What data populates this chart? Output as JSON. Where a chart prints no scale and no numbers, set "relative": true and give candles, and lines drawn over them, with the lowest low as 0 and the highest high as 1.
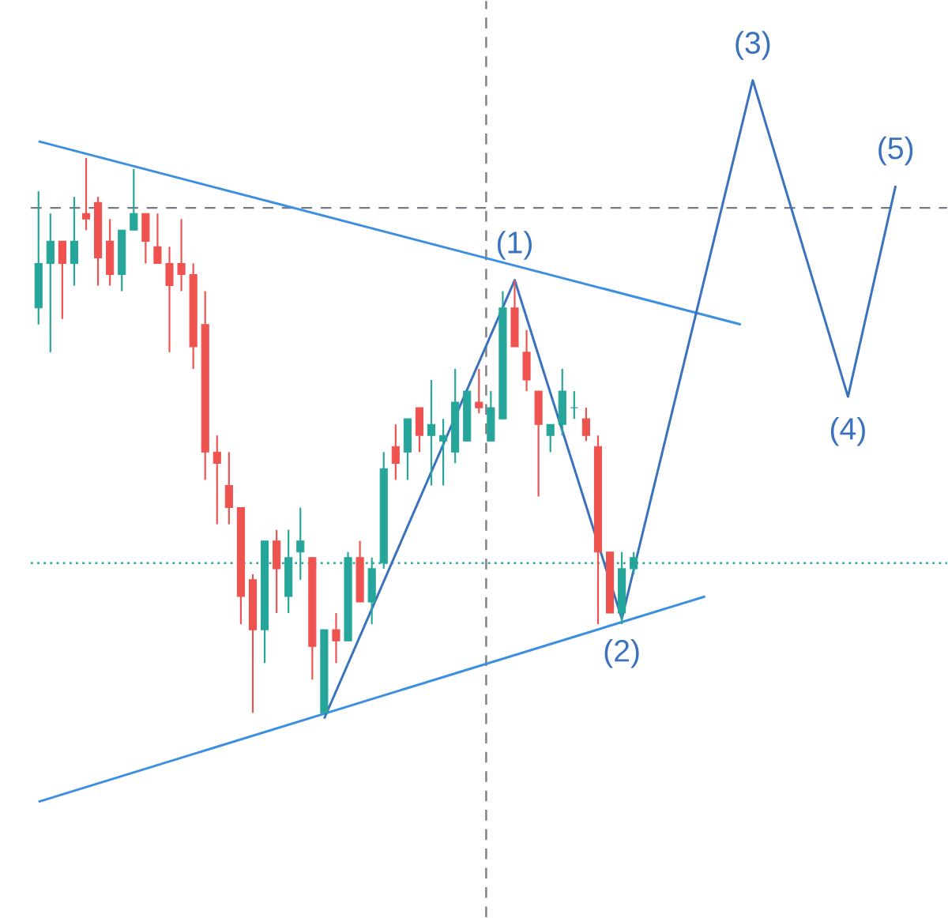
{
  "chart_data": {
    "type": "candlestick",
    "relative": true,
    "categories": [
      null,
      null,
      null,
      null,
      null,
      null,
      null,
      null,
      null,
      null,
      null,
      null,
      null,
      null,
      null,
      null,
      null,
      null,
      null,
      null,
      null,
      null,
      null,
      null,
      null,
      null,
      null,
      null,
      null,
      null,
      null,
      null,
      null,
      null,
      null,
      null,
      null,
      null,
      null,
      null,
      null,
      null,
      null,
      null,
      null,
      null,
      null,
      null,
      null,
      null,
      null,
      null,
      null,
      null,
      null,
      null,
      null,
      null,
      null,
      null,
      null,
      null,
      null,
      null,
      null,
      null,
      null,
      null,
      null,
      null,
      null,
      null,
      null
    ],
    "ohlc": [
      [
        0.73,
        0.94,
        0.7,
        0.81
      ],
      [
        0.81,
        0.9,
        0.65,
        0.85
      ],
      [
        0.85,
        0.85,
        0.71,
        0.81
      ],
      [
        0.81,
        0.93,
        0.77,
        0.85
      ],
      [
        0.9,
        1.0,
        0.87,
        0.89
      ],
      [
        0.92,
        0.93,
        0.77,
        0.82
      ],
      [
        0.85,
        0.89,
        0.77,
        0.79
      ],
      [
        0.79,
        0.87,
        0.76,
        0.87
      ],
      [
        0.87,
        0.98,
        0.87,
        0.9
      ],
      [
        0.9,
        0.9,
        0.81,
        0.85
      ],
      [
        0.84,
        0.9,
        0.81,
        0.81
      ],
      [
        0.81,
        0.84,
        0.65,
        0.77
      ],
      [
        0.81,
        0.89,
        0.76,
        0.79
      ],
      [
        0.79,
        0.81,
        0.62,
        0.66
      ],
      [
        0.7,
        0.76,
        0.42,
        0.47
      ],
      [
        0.47,
        0.5,
        0.34,
        0.45
      ],
      [
        0.41,
        0.47,
        0.34,
        0.37
      ],
      [
        0.37,
        0.37,
        0.16,
        0.21
      ],
      [
        0.24,
        0.25,
        0.0,
        0.15
      ],
      [
        0.15,
        0.31,
        0.09,
        0.31
      ],
      [
        0.31,
        0.33,
        0.18,
        0.26
      ],
      [
        0.21,
        0.33,
        0.18,
        0.28
      ],
      [
        0.29,
        0.37,
        0.24,
        0.31
      ],
      [
        0.28,
        0.28,
        0.06,
        0.12
      ],
      [
        0.0,
        0.15,
        0.0,
        0.15
      ],
      [
        0.15,
        0.18,
        0.09,
        0.13
      ],
      [
        0.13,
        0.29,
        0.13,
        0.28
      ],
      [
        0.28,
        0.31,
        0.2,
        0.2
      ],
      [
        0.2,
        0.28,
        0.16,
        0.26
      ],
      [
        0.27,
        0.47,
        0.26,
        0.44
      ],
      [
        0.48,
        0.52,
        0.42,
        0.45
      ],
      [
        0.47,
        0.53,
        0.42,
        0.53
      ],
      [
        0.55,
        0.55,
        0.47,
        0.5
      ],
      [
        0.5,
        0.6,
        0.41,
        0.52
      ],
      [
        0.49,
        0.53,
        0.41,
        0.5
      ],
      [
        0.47,
        0.62,
        0.45,
        0.56
      ],
      [
        0.49,
        0.58,
        0.49,
        0.58
      ],
      [
        0.56,
        0.62,
        0.54,
        0.55
      ],
      [
        0.49,
        0.58,
        0.49,
        0.55
      ],
      [
        0.53,
        0.76,
        0.53,
        0.73
      ],
      [
        0.73,
        0.78,
        0.66,
        0.66
      ],
      [
        0.65,
        0.69,
        0.58,
        0.6
      ],
      [
        0.58,
        0.58,
        0.39,
        0.52
      ],
      [
        0.5,
        0.52,
        0.47,
        0.52
      ],
      [
        0.52,
        0.62,
        0.5,
        0.58
      ],
      [
        0.55,
        0.58,
        0.53,
        0.55
      ],
      [
        0.53,
        0.55,
        0.49,
        0.5
      ],
      [
        0.48,
        0.5,
        0.16,
        0.29
      ],
      [
        0.29,
        0.29,
        0.18,
        0.18
      ],
      [
        0.18,
        0.29,
        0.16,
        0.26
      ],
      [
        0.26,
        0.29,
        0.25,
        0.28
      ],
      null,
      null,
      null,
      null,
      null,
      null,
      null,
      null,
      null,
      null,
      null,
      null,
      null,
      null,
      null,
      null,
      null,
      null,
      null,
      null,
      null,
      null
    ],
    "colors": [
      "#26a69a",
      "#26a69a",
      "#ef5350",
      "#26a69a",
      "#ef5350",
      "#ef5350",
      "#ef5350",
      "#26a69a",
      "#26a69a",
      "#ef5350",
      "#ef5350",
      "#ef5350",
      "#ef5350",
      "#ef5350",
      "#ef5350",
      "#ef5350",
      "#ef5350",
      "#ef5350",
      "#ef5350",
      "#26a69a",
      "#ef5350",
      "#26a69a",
      "#26a69a",
      "#ef5350",
      "#26a69a",
      "#ef5350",
      "#26a69a",
      "#ef5350",
      "#26a69a",
      "#26a69a",
      "#ef5350",
      "#26a69a",
      "#ef5350",
      "#26a69a",
      "#26a69a",
      "#26a69a",
      "#26a69a",
      "#ef5350",
      "#26a69a",
      "#26a69a",
      "#ef5350",
      "#ef5350",
      "#ef5350",
      "#26a69a",
      "#26a69a",
      "#26a69a",
      "#ef5350",
      "#ef5350",
      "#ef5350",
      "#26a69a",
      "#26a69a",
      null,
      null,
      null,
      null,
      null,
      null,
      null,
      null,
      null,
      null,
      null,
      null,
      null,
      null,
      null,
      null,
      null,
      null,
      null,
      null,
      null,
      null
    ],
    "series": [
      {
        "type": "line",
        "color": "#3d8fe0",
        "values": [
          1.03,
          null,
          null,
          null,
          null,
          null,
          null,
          null,
          null,
          null,
          null,
          null,
          null,
          null,
          null,
          null,
          null,
          null,
          null,
          null,
          null,
          null,
          null,
          null,
          null,
          null,
          null,
          null,
          null,
          null,
          null,
          null,
          null,
          null,
          null,
          null,
          null,
          null,
          null,
          null,
          null,
          null,
          null,
          null,
          null,
          null,
          null,
          null,
          null,
          null,
          null,
          null,
          null,
          null,
          null,
          null,
          null,
          null,
          null,
          0.7,
          null,
          null,
          null,
          null,
          null,
          null,
          null,
          null,
          null,
          null,
          null,
          null,
          null
        ]
      },
      {
        "type": "line",
        "color": "#3d8fe0",
        "values": [
          -0.16,
          null,
          null,
          null,
          null,
          null,
          null,
          null,
          null,
          null,
          null,
          null,
          null,
          null,
          null,
          null,
          null,
          null,
          null,
          null,
          null,
          null,
          null,
          null,
          null,
          null,
          null,
          null,
          null,
          null,
          null,
          null,
          null,
          null,
          null,
          null,
          null,
          null,
          null,
          null,
          null,
          null,
          null,
          null,
          null,
          null,
          null,
          null,
          null,
          null,
          null,
          null,
          null,
          null,
          null,
          null,
          0.21,
          null,
          null,
          null,
          null,
          null,
          null,
          null,
          null,
          null,
          null,
          null,
          null,
          null,
          null,
          null,
          null
        ]
      },
      {
        "type": "line",
        "color": "#3a72bd",
        "values": [
          null,
          null,
          null,
          null,
          null,
          null,
          null,
          null,
          null,
          null,
          null,
          null,
          null,
          null,
          null,
          null,
          null,
          null,
          null,
          null,
          null,
          null,
          null,
          null,
          -0.01,
          null,
          null,
          null,
          null,
          null,
          null,
          null,
          null,
          null,
          null,
          null,
          null,
          null,
          null,
          null,
          0.78,
          null,
          null,
          null,
          null,
          null,
          null,
          null,
          null,
          0.17,
          null,
          null,
          null,
          null,
          null,
          null,
          null,
          null,
          null,
          null,
          1.14,
          null,
          null,
          null,
          null,
          null,
          null,
          null,
          0.57,
          null,
          null,
          null,
          0.95
        ]
      }
    ],
    "annotations": [
      "(1)",
      "(2)",
      "(3)",
      "(4)",
      "(5)"
    ],
    "ref_lines": [
      {
        "axis": "y",
        "value": 0.91,
        "color": "#787b86",
        "line_style": "dashed"
      },
      {
        "axis": "y",
        "value": 0.27,
        "color": "#26a69a",
        "line_style": "dotted"
      }
    ]
  }
}
